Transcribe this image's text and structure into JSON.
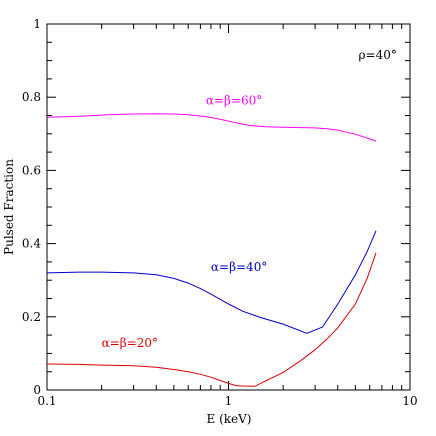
{
  "chart_data": {
    "type": "line",
    "title": "",
    "xlabel": "E (keV)",
    "ylabel": "Pulsed Fraction",
    "x_scale": "log",
    "xlim": [
      0.1,
      10
    ],
    "ylim": [
      0,
      1
    ],
    "x_ticks": [
      {
        "value": 0.1,
        "label": "0.1"
      },
      {
        "value": 1,
        "label": "1"
      },
      {
        "value": 10,
        "label": "10"
      }
    ],
    "y_ticks": [
      {
        "value": 0,
        "label": "0"
      },
      {
        "value": 0.2,
        "label": "0.2"
      },
      {
        "value": 0.4,
        "label": "0.4"
      },
      {
        "value": 0.6,
        "label": "0.6"
      },
      {
        "value": 0.8,
        "label": "0.8"
      },
      {
        "value": 1,
        "label": "1"
      }
    ],
    "grid": false,
    "annotations": [
      {
        "text": "ρ=40°",
        "x": 5.2,
        "y": 0.905,
        "color": "#000000"
      }
    ],
    "series": [
      {
        "name": "α=β=60°",
        "color": "#ff00ff",
        "label_pos": {
          "x": 0.75,
          "y": 0.78
        },
        "x": [
          0.1,
          0.15,
          0.22,
          0.3,
          0.4,
          0.5,
          0.6,
          0.75,
          0.9,
          1.1,
          1.3,
          1.6,
          2.0,
          2.5,
          3.0,
          3.5,
          4.0,
          4.5,
          5.0,
          5.5,
          6.0,
          6.5
        ],
        "y": [
          0.745,
          0.748,
          0.752,
          0.754,
          0.755,
          0.754,
          0.752,
          0.747,
          0.74,
          0.73,
          0.723,
          0.719,
          0.718,
          0.717,
          0.716,
          0.714,
          0.71,
          0.704,
          0.699,
          0.692,
          0.686,
          0.68
        ]
      },
      {
        "name": "α=β=40°",
        "color": "#0000cc",
        "label_pos": {
          "x": 0.8,
          "y": 0.325
        },
        "x": [
          0.1,
          0.15,
          0.2,
          0.3,
          0.4,
          0.5,
          0.6,
          0.7,
          0.8,
          1.0,
          1.2,
          1.5,
          2.0,
          2.7,
          3.3,
          4.0,
          5.0,
          5.8,
          6.5
        ],
        "y": [
          0.32,
          0.322,
          0.322,
          0.32,
          0.315,
          0.305,
          0.292,
          0.277,
          0.262,
          0.235,
          0.215,
          0.198,
          0.18,
          0.155,
          0.172,
          0.235,
          0.315,
          0.378,
          0.435
        ]
      },
      {
        "name": "α=β=20°",
        "color": "#dd0000",
        "label_pos": {
          "x": 0.2,
          "y": 0.118
        },
        "x": [
          0.1,
          0.15,
          0.2,
          0.3,
          0.4,
          0.5,
          0.6,
          0.7,
          0.8,
          0.9,
          1.0,
          1.1,
          1.2,
          1.4,
          1.6,
          2.0,
          2.5,
          3.0,
          3.5,
          4.0,
          5.0,
          5.8,
          6.5
        ],
        "y": [
          0.071,
          0.07,
          0.068,
          0.066,
          0.062,
          0.056,
          0.05,
          0.043,
          0.035,
          0.026,
          0.018,
          0.012,
          0.011,
          0.01,
          0.025,
          0.048,
          0.08,
          0.11,
          0.14,
          0.17,
          0.235,
          0.305,
          0.375
        ]
      }
    ]
  }
}
